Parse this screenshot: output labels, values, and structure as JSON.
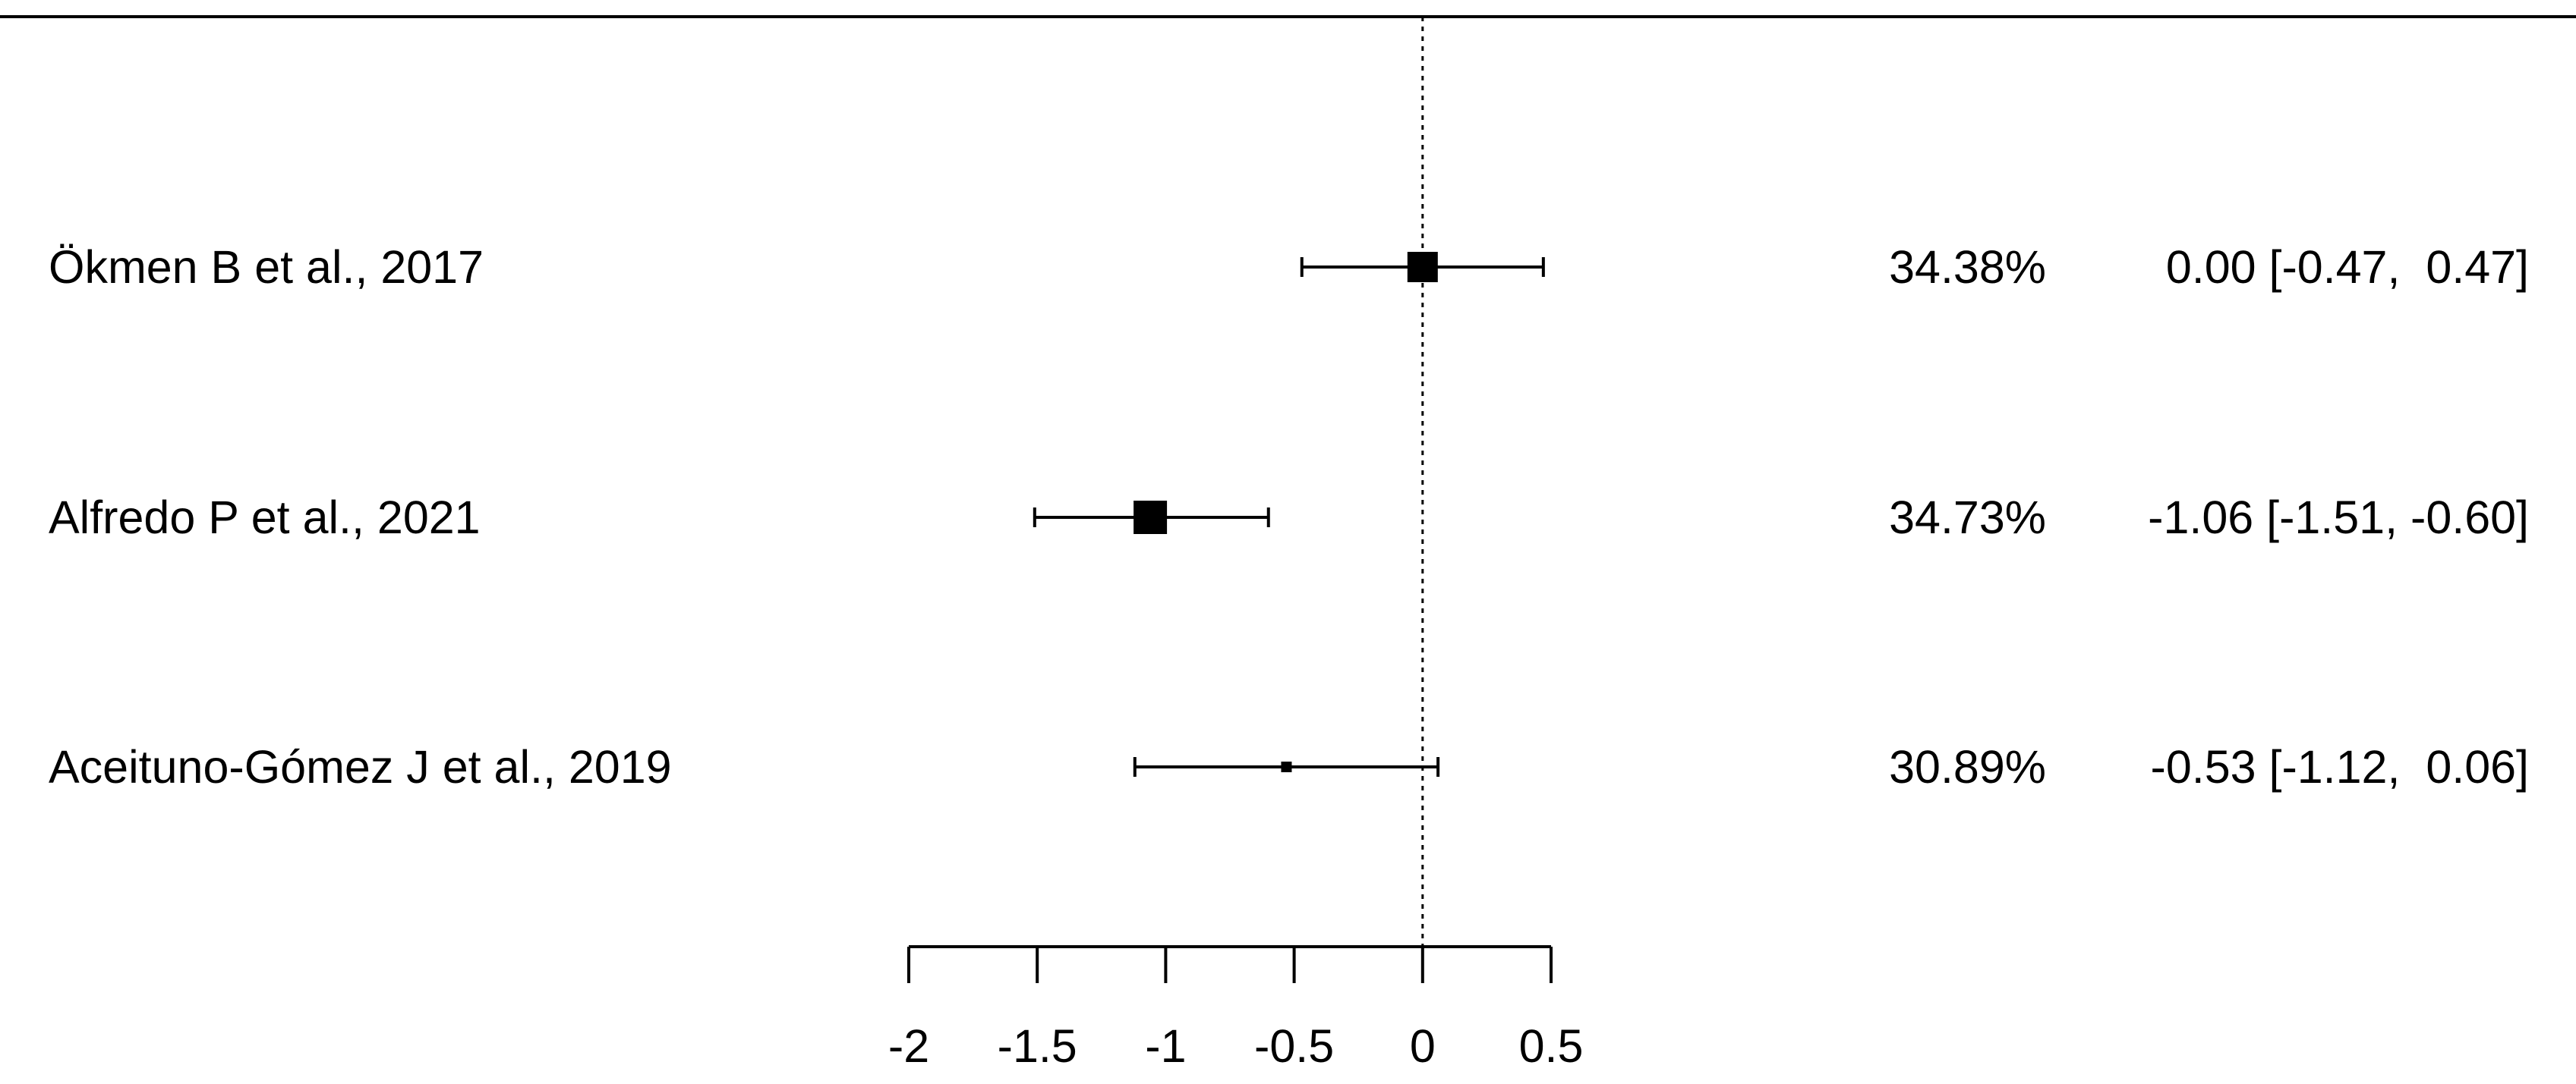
{
  "chart_data": {
    "type": "forest",
    "reference_line": 0,
    "xlim": [
      -2,
      0.5
    ],
    "x_ticks": [
      -2,
      -1.5,
      -1,
      -0.5,
      0,
      0.5
    ],
    "x_tick_labels": [
      "-2",
      "-1.5",
      "-1",
      "-0.5",
      "0",
      "0.5"
    ],
    "studies": [
      {
        "label": "Ökmen B et al., 2017",
        "weight": "34.38%",
        "estimate": 0.0,
        "ci_lower": -0.47,
        "ci_upper": 0.47,
        "ci_text": "0.00 [-0.47,  0.47]"
      },
      {
        "label": "Alfredo P et al., 2021",
        "weight": "34.73%",
        "estimate": -1.06,
        "ci_lower": -1.51,
        "ci_upper": -0.6,
        "ci_text": "-1.06 [-1.51, -0.60]"
      },
      {
        "label": "Aceituno-Gómez J et al., 2019",
        "weight": "30.89%",
        "estimate": -0.53,
        "ci_lower": -1.12,
        "ci_upper": 0.06,
        "ci_text": "-0.53 [-1.12,  0.06]"
      }
    ],
    "marker_sizes": [
      40,
      44,
      14
    ]
  }
}
